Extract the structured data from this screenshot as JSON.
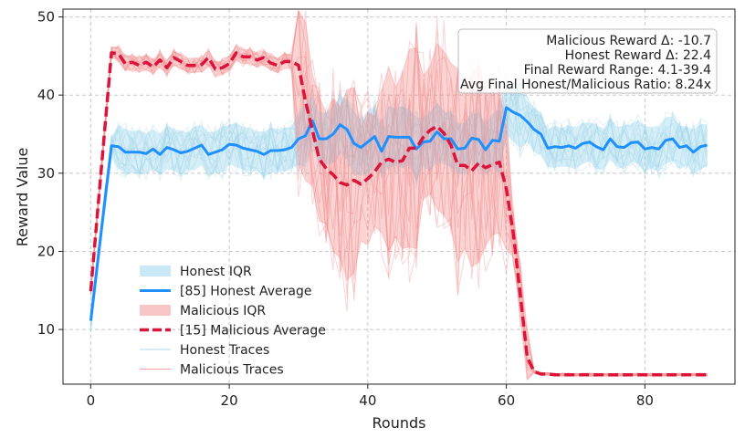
{
  "chart_data": {
    "type": "line",
    "xlabel": "Rounds",
    "ylabel": "Reward Value",
    "xlim": [
      -4,
      93
    ],
    "ylim": [
      3,
      51
    ],
    "xticks": [
      0,
      20,
      40,
      60,
      80
    ],
    "yticks": [
      10,
      20,
      30,
      40,
      50
    ],
    "grid": true,
    "legend_position": "lower-left",
    "colors": {
      "honest": "#1e90ff",
      "honest_band": "#87ceeb",
      "malicious": "#dc143c",
      "malicious_band": "#f08080"
    },
    "legend": [
      {
        "label": "Honest IQR",
        "kind": "band",
        "color": "#87ceeb"
      },
      {
        "label": "[85] Honest Average",
        "kind": "line",
        "color": "#1e90ff"
      },
      {
        "label": "Malicious IQR",
        "kind": "band",
        "color": "#f08080"
      },
      {
        "label": "[15] Malicious Average",
        "kind": "dashed",
        "color": "#dc143c"
      },
      {
        "label": "Honest Traces",
        "kind": "thin",
        "color": "#add8e6"
      },
      {
        "label": "Malicious Traces",
        "kind": "thin",
        "color": "#f4a0a0"
      }
    ],
    "annotations": [
      "Malicious Reward Δ: -10.7",
      "Honest Reward Δ: 22.4",
      "Final Reward Range: 4.1-39.4",
      "Avg Final Honest/Malicious Ratio: 8.24x"
    ],
    "series": [
      {
        "name": "[85] Honest Average",
        "x": [
          0,
          1,
          2,
          3,
          4,
          5,
          6,
          7,
          8,
          9,
          10,
          11,
          12,
          13,
          14,
          15,
          16,
          17,
          18,
          19,
          20,
          21,
          22,
          23,
          24,
          25,
          26,
          27,
          28,
          29,
          30,
          31,
          32,
          33,
          34,
          35,
          36,
          37,
          38,
          39,
          40,
          41,
          42,
          43,
          44,
          45,
          46,
          47,
          48,
          49,
          50,
          51,
          52,
          53,
          54,
          55,
          56,
          57,
          58,
          59,
          60,
          61,
          62,
          63,
          64,
          65,
          66,
          67,
          68,
          69,
          70,
          71,
          72,
          73,
          74,
          75,
          76,
          77,
          78,
          79,
          80,
          81,
          82,
          83,
          84,
          85,
          86,
          87,
          88,
          89
        ],
        "values": [
          11.1,
          18.6,
          26.1,
          33.5,
          33.4,
          32.7,
          32.7,
          32.7,
          32.5,
          33.1,
          32.4,
          33.3,
          33.0,
          32.6,
          32.8,
          33.2,
          33.6,
          32.4,
          32.7,
          33.0,
          33.7,
          33.6,
          33.2,
          33.0,
          32.8,
          32.4,
          32.9,
          32.9,
          33.0,
          33.3,
          34.4,
          34.8,
          36.7,
          34.4,
          34.4,
          35.0,
          36.2,
          35.6,
          33.8,
          33.3,
          34.0,
          34.7,
          32.8,
          34.7,
          34.6,
          34.6,
          34.6,
          33.1,
          34.0,
          34.1,
          35.3,
          34.4,
          34.4,
          33.1,
          33.2,
          34.5,
          34.3,
          33.0,
          34.2,
          34.1,
          38.4,
          37.8,
          37.4,
          36.6,
          35.6,
          35.0,
          33.2,
          33.4,
          33.3,
          33.5,
          33.2,
          33.8,
          34.0,
          33.4,
          33.0,
          34.4,
          33.4,
          33.3,
          33.9,
          34.0,
          33.1,
          33.3,
          33.1,
          34.2,
          34.4,
          33.3,
          33.5,
          32.7,
          33.4,
          33.6
        ]
      },
      {
        "name": "[15] Malicious Average",
        "x": [
          0,
          1,
          2,
          3,
          4,
          5,
          6,
          7,
          8,
          9,
          10,
          11,
          12,
          13,
          14,
          15,
          16,
          17,
          18,
          19,
          20,
          21,
          22,
          23,
          24,
          25,
          26,
          27,
          28,
          29,
          30,
          31,
          32,
          33,
          34,
          35,
          36,
          37,
          38,
          39,
          40,
          41,
          42,
          43,
          44,
          45,
          46,
          47,
          48,
          49,
          50,
          51,
          52,
          53,
          54,
          55,
          56,
          57,
          58,
          59,
          60,
          61,
          62,
          63,
          64,
          65,
          66,
          67,
          68,
          69,
          70,
          71,
          72,
          73,
          74,
          75,
          76,
          77,
          78,
          79,
          80,
          81,
          82,
          83,
          84,
          85,
          86,
          87,
          88,
          89
        ],
        "values": [
          14.9,
          25.1,
          35.3,
          45.4,
          45.3,
          44.0,
          44.2,
          43.8,
          44.2,
          43.6,
          44.5,
          43.5,
          44.8,
          44.3,
          43.8,
          43.8,
          43.9,
          44.8,
          43.3,
          43.5,
          44.0,
          45.4,
          44.9,
          44.9,
          44.5,
          44.8,
          44.1,
          43.8,
          44.3,
          44.3,
          43.8,
          39.2,
          35.5,
          31.8,
          30.6,
          29.8,
          28.8,
          28.5,
          29.1,
          28.6,
          29.3,
          30.2,
          31.4,
          31.8,
          31.4,
          31.6,
          33.2,
          33.2,
          34.6,
          35.5,
          36.0,
          35.1,
          33.6,
          31.0,
          31.0,
          30.3,
          31.3,
          30.7,
          31.1,
          31.4,
          28.0,
          22.3,
          14.5,
          6.5,
          4.6,
          4.3,
          4.3,
          4.2,
          4.2,
          4.2,
          4.2,
          4.2,
          4.2,
          4.2,
          4.2,
          4.2,
          4.2,
          4.2,
          4.2,
          4.2,
          4.2,
          4.2,
          4.2,
          4.2,
          4.2,
          4.2,
          4.2,
          4.2,
          4.2,
          4.2
        ]
      }
    ]
  }
}
